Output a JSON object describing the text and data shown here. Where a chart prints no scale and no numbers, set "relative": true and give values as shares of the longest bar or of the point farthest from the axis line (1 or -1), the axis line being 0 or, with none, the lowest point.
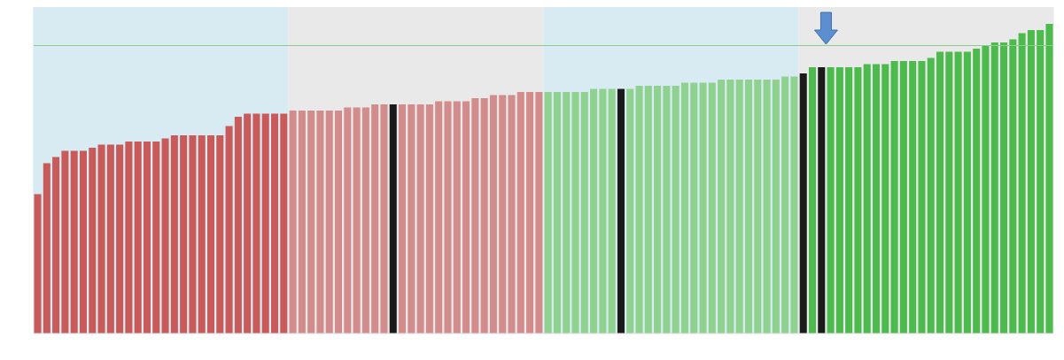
{
  "chart_data": {
    "type": "bar",
    "relative": true,
    "categories": [
      null,
      null,
      null,
      null,
      null,
      null,
      null,
      null,
      null,
      null,
      null,
      null,
      null,
      null,
      null,
      null,
      null,
      null,
      null,
      null,
      null,
      null,
      null,
      null,
      null,
      null,
      null,
      null,
      null,
      null,
      null,
      null,
      null,
      null,
      null,
      null,
      null,
      null,
      null,
      null,
      null,
      null,
      null,
      null,
      null,
      null,
      null,
      null,
      null,
      null,
      null,
      null,
      null,
      null,
      null,
      null,
      null,
      null,
      null,
      null,
      null,
      null,
      null,
      null,
      null,
      null,
      null,
      null,
      null,
      null,
      null,
      null,
      null,
      null,
      null,
      null,
      null,
      null,
      null,
      null,
      null,
      null,
      null,
      null,
      null,
      null,
      null,
      null,
      null,
      null,
      null,
      null,
      null,
      null,
      null,
      null,
      null,
      null,
      null,
      null,
      null,
      null,
      null,
      null,
      null,
      null,
      null,
      null,
      null,
      null,
      null,
      null
    ],
    "values": [
      0.45,
      0.55,
      0.57,
      0.59,
      0.59,
      0.59,
      0.6,
      0.61,
      0.61,
      0.61,
      0.62,
      0.62,
      0.62,
      0.62,
      0.63,
      0.64,
      0.64,
      0.64,
      0.64,
      0.64,
      0.64,
      0.67,
      0.7,
      0.71,
      0.71,
      0.71,
      0.71,
      0.71,
      0.72,
      0.72,
      0.72,
      0.72,
      0.72,
      0.72,
      0.73,
      0.73,
      0.73,
      0.74,
      0.74,
      0.74,
      0.74,
      0.74,
      0.74,
      0.74,
      0.75,
      0.75,
      0.75,
      0.75,
      0.76,
      0.76,
      0.77,
      0.77,
      0.77,
      0.78,
      0.78,
      0.78,
      0.78,
      0.78,
      0.78,
      0.78,
      0.78,
      0.79,
      0.79,
      0.79,
      0.79,
      0.79,
      0.8,
      0.8,
      0.8,
      0.8,
      0.8,
      0.81,
      0.81,
      0.81,
      0.81,
      0.82,
      0.82,
      0.82,
      0.82,
      0.82,
      0.82,
      0.82,
      0.83,
      0.83,
      0.84,
      0.86,
      0.86,
      0.86,
      0.86,
      0.86,
      0.86,
      0.87,
      0.87,
      0.87,
      0.88,
      0.88,
      0.88,
      0.88,
      0.89,
      0.91,
      0.91,
      0.91,
      0.91,
      0.92,
      0.93,
      0.94,
      0.94,
      0.95,
      0.97,
      0.98,
      0.98,
      1
    ],
    "colors": [
      "#c85a5a",
      "#c85a5a",
      "#c85a5a",
      "#c85a5a",
      "#c85a5a",
      "#c85a5a",
      "#c85a5a",
      "#c85a5a",
      "#c85a5a",
      "#c85a5a",
      "#c85a5a",
      "#c85a5a",
      "#c85a5a",
      "#c85a5a",
      "#c85a5a",
      "#c85a5a",
      "#c85a5a",
      "#c85a5a",
      "#c85a5a",
      "#c85a5a",
      "#c85a5a",
      "#c85a5a",
      "#c85a5a",
      "#c85a5a",
      "#c85a5a",
      "#c85a5a",
      "#c85a5a",
      "#c85a5a",
      "#d38c8c",
      "#d38c8c",
      "#d38c8c",
      "#d38c8c",
      "#d38c8c",
      "#d38c8c",
      "#d38c8c",
      "#d38c8c",
      "#d38c8c",
      "#d38c8c",
      "#d38c8c",
      "#1a1a1a",
      "#d38c8c",
      "#d38c8c",
      "#d38c8c",
      "#d38c8c",
      "#d38c8c",
      "#d38c8c",
      "#d38c8c",
      "#d38c8c",
      "#d38c8c",
      "#d38c8c",
      "#d38c8c",
      "#d38c8c",
      "#d38c8c",
      "#d38c8c",
      "#d38c8c",
      "#d38c8c",
      "#8fd28f",
      "#8fd28f",
      "#8fd28f",
      "#8fd28f",
      "#8fd28f",
      "#8fd28f",
      "#8fd28f",
      "#8fd28f",
      "#1a1a1a",
      "#8fd28f",
      "#8fd28f",
      "#8fd28f",
      "#8fd28f",
      "#8fd28f",
      "#8fd28f",
      "#8fd28f",
      "#8fd28f",
      "#8fd28f",
      "#8fd28f",
      "#8fd28f",
      "#8fd28f",
      "#8fd28f",
      "#8fd28f",
      "#8fd28f",
      "#8fd28f",
      "#8fd28f",
      "#8fd28f",
      "#8fd28f",
      "#1a1a1a",
      "#4cba4c",
      "#1a1a1a",
      "#4cba4c",
      "#4cba4c",
      "#4cba4c",
      "#4cba4c",
      "#4cba4c",
      "#4cba4c",
      "#4cba4c",
      "#4cba4c",
      "#4cba4c",
      "#4cba4c",
      "#4cba4c",
      "#4cba4c",
      "#4cba4c",
      "#4cba4c",
      "#4cba4c",
      "#4cba4c",
      "#4cba4c",
      "#4cba4c",
      "#4cba4c",
      "#4cba4c",
      "#4cba4c",
      "#4cba4c",
      "#4cba4c",
      "#4cba4c",
      "#4cba4c"
    ],
    "ref_lines": [
      {
        "axis": "y",
        "value": 0.93,
        "color": "#8ccf8c"
      }
    ]
  }
}
